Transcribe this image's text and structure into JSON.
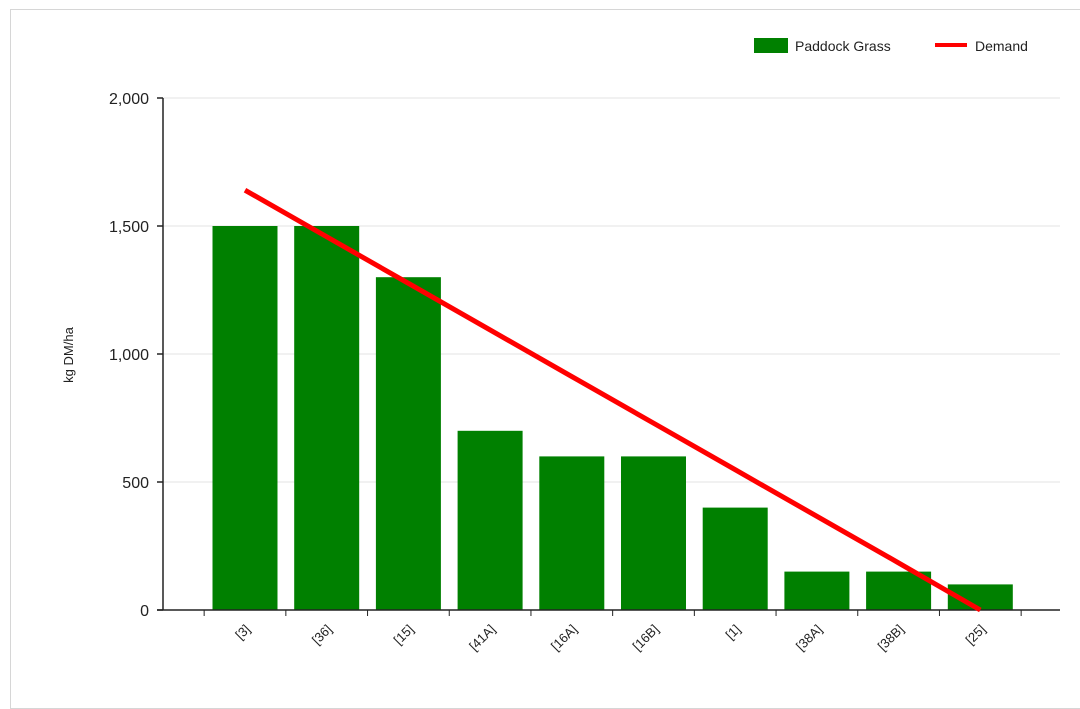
{
  "chart_data": {
    "type": "bar",
    "categories": [
      "[3]",
      "[36]",
      "[15]",
      "[41A]",
      "[16A]",
      "[16B]",
      "[1]",
      "[38A]",
      "[38B]",
      "[25]"
    ],
    "series": [
      {
        "name": "Paddock Grass",
        "type": "bar",
        "color": "#008000",
        "values": [
          1500,
          1500,
          1300,
          700,
          600,
          600,
          400,
          150,
          150,
          100
        ]
      },
      {
        "name": "Demand",
        "type": "line",
        "color": "#ff0000",
        "values": [
          1640,
          1458,
          1276,
          1094,
          912,
          730,
          548,
          366,
          184,
          0
        ]
      }
    ],
    "title": "",
    "xlabel": "",
    "ylabel": "kg DM/ha",
    "ylim": [
      0,
      2000
    ],
    "yticks": [
      "0",
      "500",
      "1,000",
      "1,500",
      "2,000"
    ],
    "ytick_values": [
      0,
      500,
      1000,
      1500,
      2000
    ],
    "grid": true,
    "legend_position": "top-right"
  }
}
